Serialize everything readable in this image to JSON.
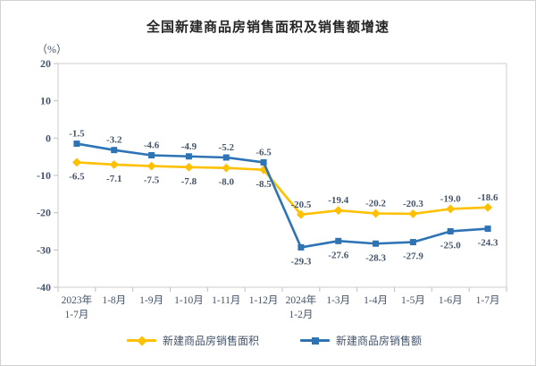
{
  "chart_data": {
    "type": "line",
    "title": "全国新建商品房销售面积及销售额增速",
    "unit_label": "（%）",
    "categories": [
      [
        "2023年",
        "1-7月"
      ],
      [
        "1-8月"
      ],
      [
        "1-9月"
      ],
      [
        "1-10月"
      ],
      [
        "1-11月"
      ],
      [
        "1-12月"
      ],
      [
        "2024年",
        "1-2月"
      ],
      [
        "1-3月"
      ],
      [
        "1-4月"
      ],
      [
        "1-5月"
      ],
      [
        "1-6月"
      ],
      [
        "1-7月"
      ]
    ],
    "series": [
      {
        "name": "新建商品房销售面积",
        "color": "#FFC000",
        "marker": "diamond",
        "values": [
          -6.5,
          -7.1,
          -7.5,
          -7.8,
          -8.0,
          -8.5,
          -20.5,
          -19.4,
          -20.2,
          -20.3,
          -19.0,
          -18.6
        ],
        "labels": [
          "-6.5",
          "-7.1",
          "-7.5",
          "-7.8",
          "-8.0",
          "-8.5",
          "-20.5",
          "-19.4",
          "-20.2",
          "-20.3",
          "-19.0",
          "-18.6"
        ],
        "label_side": [
          "below",
          "below",
          "below",
          "below",
          "below",
          "below",
          "above",
          "above",
          "above",
          "above",
          "above",
          "above"
        ]
      },
      {
        "name": "新建商品房销售额",
        "color": "#2E74B5",
        "marker": "square",
        "values": [
          -1.5,
          -3.2,
          -4.6,
          -4.9,
          -5.2,
          -6.5,
          -29.3,
          -27.6,
          -28.3,
          -27.9,
          -25.0,
          -24.3
        ],
        "labels": [
          "-1.5",
          "-3.2",
          "-4.6",
          "-4.9",
          "-5.2",
          "-6.5",
          "-29.3",
          "-27.6",
          "-28.3",
          "-27.9",
          "-25.0",
          "-24.3"
        ],
        "label_side": [
          "above",
          "above",
          "above",
          "above",
          "above",
          "above",
          "below",
          "below",
          "below",
          "below",
          "below",
          "below"
        ]
      }
    ],
    "ylim": [
      -40,
      20
    ],
    "ytick_step": 10,
    "ytick_labels": [
      "20",
      "10",
      "0",
      "-10",
      "-20",
      "-30",
      "-40"
    ],
    "grid": false,
    "legend_position": "bottom"
  },
  "colors": {
    "plot_border": "#D9D9D9",
    "tick_mark": "#BFBFBF",
    "axis_label": "#44546A",
    "title_text": "#262626"
  }
}
